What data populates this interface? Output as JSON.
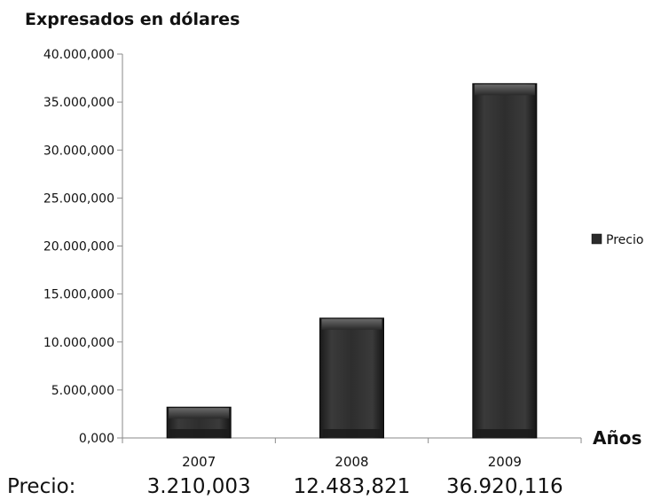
{
  "chart_data": {
    "type": "bar",
    "title": "Expresados en dólares",
    "xlabel": "Años",
    "ylabel": "",
    "categories": [
      "2007",
      "2008",
      "2009"
    ],
    "series": [
      {
        "name": "Precio",
        "values": [
          3210003,
          12483821,
          36920116
        ]
      }
    ],
    "ylim": [
      0,
      40000000
    ],
    "yticks": [
      0,
      5000000,
      10000000,
      15000000,
      20000000,
      25000000,
      30000000,
      35000000,
      40000000
    ],
    "ytick_labels": [
      "0,000",
      "5.000,000",
      "10.000,000",
      "15.000,000",
      "20.000,000",
      "25.000,000",
      "30.000,000",
      "35.000,000",
      "40.000,000"
    ],
    "grid": false,
    "legend_position": "right",
    "bar_color": "#2b2b2b",
    "data_table": {
      "row_label": "Precio:",
      "values": [
        "3.210,003",
        "12.483,821",
        "36.920,116"
      ]
    }
  }
}
